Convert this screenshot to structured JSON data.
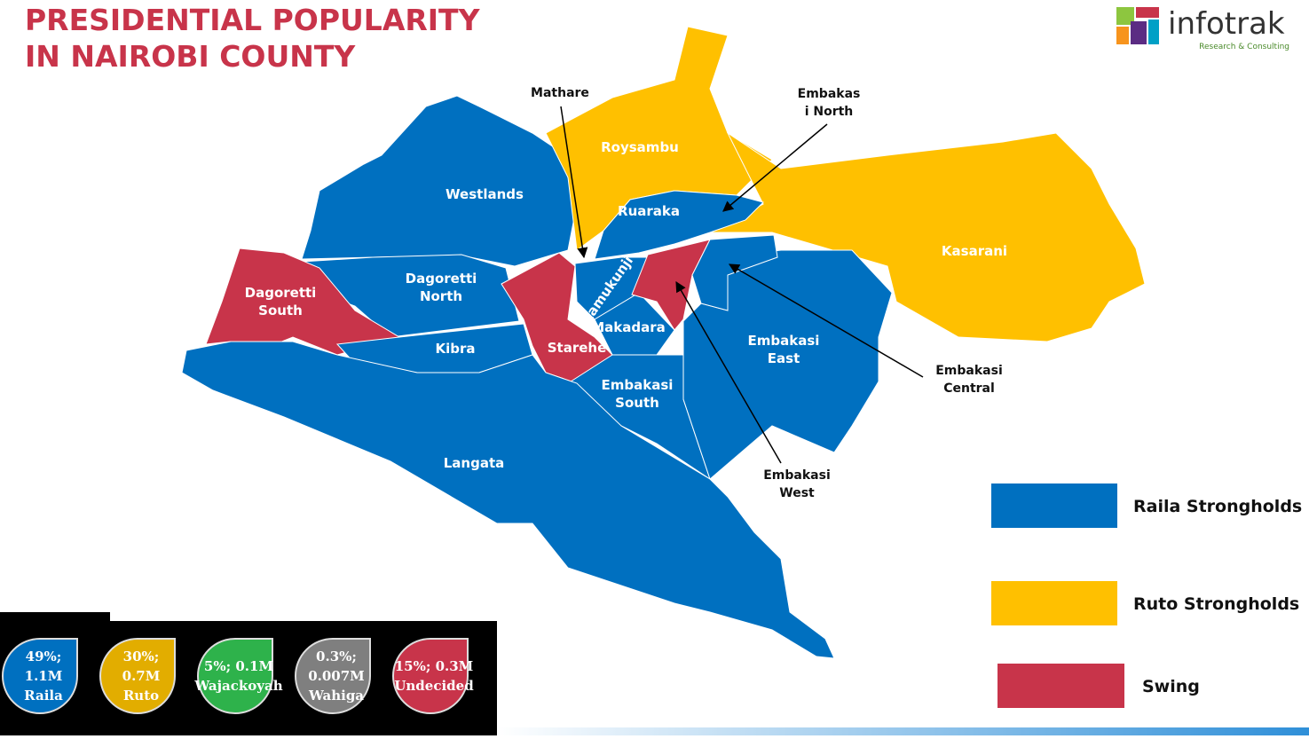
{
  "header": {
    "title": [
      "PRESIDENTIAL POPULARITY",
      "IN NAIROBI COUNTY"
    ],
    "logo": {
      "name": "infotrak",
      "tagline": "Research & Consulting"
    }
  },
  "regions": [
    {
      "label": [
        "Westlands"
      ],
      "color": "#0070c0"
    },
    {
      "label": [
        "Roysambu"
      ],
      "color": "#ffc000"
    },
    {
      "label": [
        "Kasarani"
      ],
      "color": "#ffc000"
    },
    {
      "label": [
        "Ruaraka"
      ],
      "color": "#0070c0"
    },
    {
      "label": [
        "Dagoretti",
        "North"
      ],
      "color": "#0070c0"
    },
    {
      "label": [
        "Dagoretti",
        "South"
      ],
      "color": "#c8344a"
    },
    {
      "label": [
        "Kibra"
      ],
      "color": "#0070c0"
    },
    {
      "label": [
        "Starehe"
      ],
      "color": "#c8344a"
    },
    {
      "label": [
        "Kamukunji"
      ],
      "color": "#0070c0"
    },
    {
      "label": [
        "Makadara"
      ],
      "color": "#0070c0"
    },
    {
      "label": [
        "Embakasi",
        "South"
      ],
      "color": "#0070c0"
    },
    {
      "label": [
        "Embakasi",
        "East"
      ],
      "color": "#0070c0"
    },
    {
      "label": [
        "Langata"
      ],
      "color": "#0070c0"
    }
  ],
  "unlabeled_regions": [
    {
      "color": "#c8344a"
    },
    {
      "color": "#0070c0"
    }
  ],
  "callouts": [
    {
      "label": [
        "Mathare"
      ]
    },
    {
      "label": [
        "Embakas",
        "i North"
      ]
    },
    {
      "label": [
        "Embakasi",
        "Central"
      ]
    },
    {
      "label": [
        "Embakasi",
        "West"
      ]
    }
  ],
  "legend": [
    {
      "label": "Raila Strongholds",
      "color": "#0070c0"
    },
    {
      "label": "Ruto Strongholds",
      "color": "#ffc000"
    },
    {
      "label": "Swing",
      "color": "#c8344a"
    }
  ],
  "bubbles": [
    {
      "lines": [
        "49%;",
        "1.1M",
        "Raila"
      ],
      "color": "#0070c0"
    },
    {
      "lines": [
        "30%;",
        "0.7M",
        "Ruto"
      ],
      "color": "#e2ad00"
    },
    {
      "lines": [
        "5%; 0.1M",
        "Wajackoyah"
      ],
      "color": "#2eb24b"
    },
    {
      "lines": [
        "0.3%;",
        "0.007M",
        "Wahiga"
      ],
      "color": "#7f7f7f"
    },
    {
      "lines": [
        "15%; 0.3M",
        "Undecided"
      ],
      "color": "#c8344a"
    }
  ]
}
